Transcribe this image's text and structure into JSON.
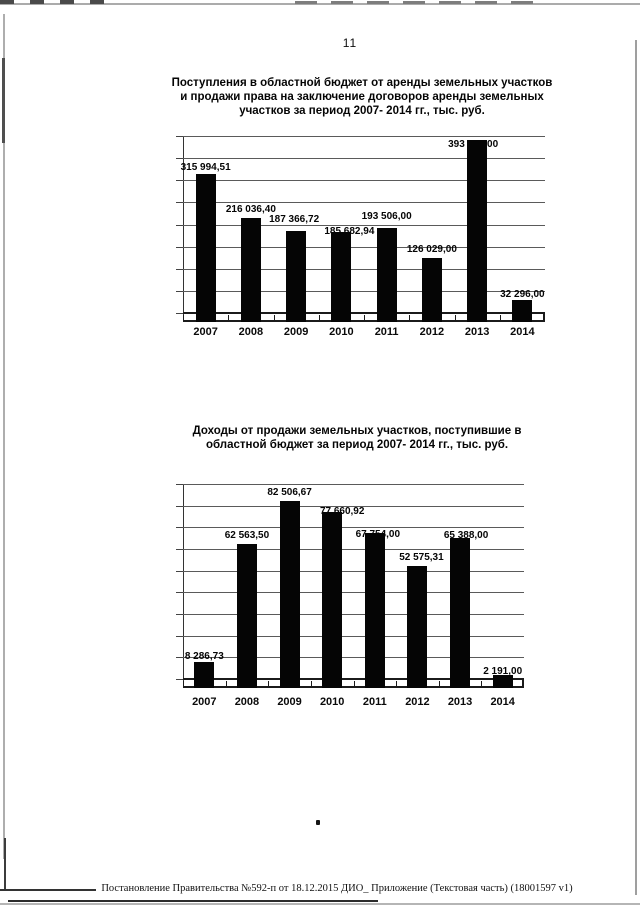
{
  "page": {
    "number": "11",
    "footer": "Постановление Правительства №592-п от 18.12.2015 ДИО_ Приложение (Текстовая часть) (18001597 v1)",
    "background": "#ffffff",
    "ink_color": "#0c0c0c",
    "bar_color": "#050505"
  },
  "chart_data": [
    {
      "type": "bar",
      "title": "Поступления в областной бюджет от аренды земельных участков и продажи права на заключение договоров аренды земельных участков за период 2007- 2014 гг., тыс. руб.",
      "title_lines": [
        "Поступления в областной бюджет от аренды земельных участков",
        "и продажи права на заключение договоров аренды земельных",
        "участков за период 2007- 2014 гг., тыс. руб."
      ],
      "categories": [
        "2007",
        "2008",
        "2009",
        "2010",
        "2011",
        "2012",
        "2013",
        "2014"
      ],
      "values": [
        315994.51,
        216036.4,
        187366.72,
        185682.94,
        193506.0,
        126029.0,
        393357.0,
        32296.0
      ],
      "value_labels": [
        "315 994,51",
        "216 036,40",
        "187 366,72",
        "185 682,94",
        "193 506,00",
        "126 029,00",
        "393 357,00",
        "32 296,00"
      ],
      "xlabel": "",
      "ylabel": "",
      "ylim": [
        0,
        400000
      ],
      "gridlines": 8,
      "grid": true,
      "legend": false,
      "bar_color": "#050505",
      "label_dx": [
        0,
        0,
        -2,
        8,
        0,
        0,
        -4,
        0
      ],
      "label_dy": [
        2,
        0,
        -3,
        8,
        -3,
        0,
        13,
        3
      ]
    },
    {
      "type": "bar",
      "title": "Доходы от продажи земельных участков, поступившие в областной бюджет за период 2007- 2014 гг., тыс. руб.",
      "title_lines": [
        "Доходы от продажи земельных участков, поступившие  в",
        "областной бюджет за период 2007- 2014 гг., тыс. руб."
      ],
      "categories": [
        "2007",
        "2008",
        "2009",
        "2010",
        "2011",
        "2012",
        "2013",
        "2014"
      ],
      "values": [
        8286.73,
        62563.5,
        82506.67,
        77660.92,
        67754.0,
        52575.31,
        65388.0,
        2191.0
      ],
      "value_labels": [
        "8 286,73",
        "62 563,50",
        "82 506,67",
        "77 660,92",
        "67 754,00",
        "52 575,31",
        "65 388,00",
        "2 191,00"
      ],
      "xlabel": "",
      "ylabel": "",
      "ylim": [
        0,
        90000
      ],
      "gridlines": 9,
      "grid": true,
      "legend": false,
      "bar_color": "#050505",
      "label_dx": [
        0,
        0,
        0,
        10,
        3,
        4,
        6,
        0
      ],
      "label_dy": [
        3,
        0,
        0,
        8,
        10,
        0,
        6,
        5
      ]
    }
  ]
}
